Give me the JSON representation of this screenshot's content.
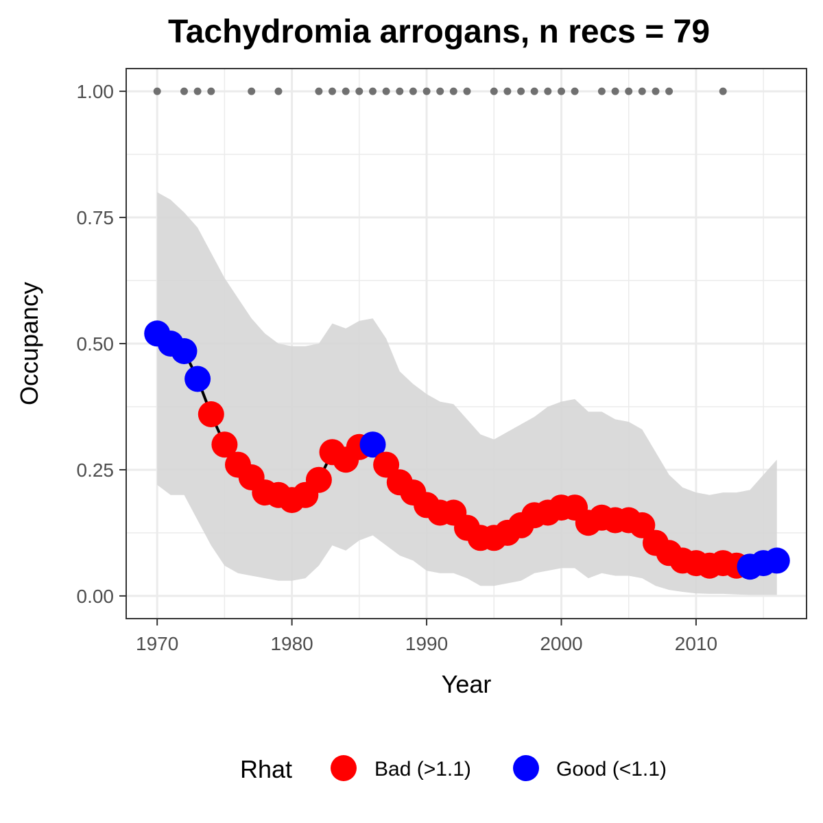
{
  "chart_data": {
    "type": "line",
    "title": "Tachydromia arrogans, n recs = 79",
    "xlabel": "Year",
    "ylabel": "Occupancy",
    "xlim": [
      1967.7,
      2018.2
    ],
    "ylim": [
      -0.045,
      1.045
    ],
    "xticks": [
      1970,
      1980,
      1990,
      2000,
      2010
    ],
    "xtick_labels": [
      "1970",
      "1980",
      "1990",
      "2000",
      "2010"
    ],
    "yticks": [
      0,
      0.25,
      0.5,
      0.75,
      1.0
    ],
    "ytick_labels": [
      "0.00",
      "0.25",
      "0.50",
      "0.75",
      "1.00"
    ],
    "grid": true,
    "legend": {
      "title": "Rhat",
      "position": "bottom",
      "entries": [
        {
          "key": "bad",
          "label": "Bad (>1.1)",
          "color": "#ff0000"
        },
        {
          "key": "good",
          "label": "Good (<1.1)",
          "color": "#0000ff"
        }
      ]
    },
    "series": [
      {
        "x": [
          1970,
          1971,
          1972,
          1973,
          1974,
          1975,
          1976,
          1977,
          1978,
          1979,
          1980,
          1981,
          1982,
          1983,
          1984,
          1985,
          1986,
          1987,
          1988,
          1989,
          1990,
          1991,
          1992,
          1993,
          1994,
          1995,
          1996,
          1997,
          1998,
          1999,
          2000,
          2001,
          2002,
          2003,
          2004,
          2005,
          2006,
          2007,
          2008,
          2009,
          2010,
          2011,
          2012,
          2013,
          2014,
          2015,
          2016
        ],
        "y": [
          0.52,
          0.5,
          0.485,
          0.43,
          0.36,
          0.3,
          0.26,
          0.235,
          0.205,
          0.2,
          0.19,
          0.2,
          0.23,
          0.285,
          0.27,
          0.295,
          0.3,
          0.26,
          0.225,
          0.205,
          0.18,
          0.165,
          0.165,
          0.135,
          0.115,
          0.115,
          0.125,
          0.14,
          0.16,
          0.165,
          0.175,
          0.175,
          0.145,
          0.155,
          0.15,
          0.15,
          0.14,
          0.105,
          0.085,
          0.07,
          0.065,
          0.06,
          0.065,
          0.06,
          0.058,
          0.065,
          0.07
        ],
        "rhat": [
          "good",
          "good",
          "good",
          "good",
          "bad",
          "bad",
          "bad",
          "bad",
          "bad",
          "bad",
          "bad",
          "bad",
          "bad",
          "bad",
          "bad",
          "bad",
          "good",
          "bad",
          "bad",
          "bad",
          "bad",
          "bad",
          "bad",
          "bad",
          "bad",
          "bad",
          "bad",
          "bad",
          "bad",
          "bad",
          "bad",
          "bad",
          "bad",
          "bad",
          "bad",
          "bad",
          "bad",
          "bad",
          "bad",
          "bad",
          "bad",
          "bad",
          "bad",
          "bad",
          "good",
          "good",
          "good"
        ],
        "lower": [
          0.22,
          0.2,
          0.2,
          0.15,
          0.1,
          0.06,
          0.045,
          0.04,
          0.035,
          0.03,
          0.03,
          0.035,
          0.06,
          0.1,
          0.09,
          0.11,
          0.12,
          0.1,
          0.08,
          0.07,
          0.05,
          0.045,
          0.045,
          0.035,
          0.02,
          0.02,
          0.025,
          0.03,
          0.045,
          0.05,
          0.055,
          0.055,
          0.035,
          0.045,
          0.04,
          0.04,
          0.035,
          0.02,
          0.012,
          0.008,
          0.005,
          0.004,
          0.004,
          0.003,
          0.002,
          0.002,
          0.002
        ],
        "upper": [
          0.8,
          0.785,
          0.76,
          0.73,
          0.68,
          0.63,
          0.59,
          0.55,
          0.52,
          0.5,
          0.495,
          0.495,
          0.5,
          0.54,
          0.53,
          0.545,
          0.55,
          0.51,
          0.445,
          0.42,
          0.4,
          0.385,
          0.38,
          0.35,
          0.32,
          0.31,
          0.325,
          0.34,
          0.355,
          0.375,
          0.385,
          0.39,
          0.365,
          0.365,
          0.35,
          0.345,
          0.33,
          0.285,
          0.24,
          0.215,
          0.205,
          0.2,
          0.205,
          0.205,
          0.21,
          0.24,
          0.27
        ]
      }
    ],
    "records": {
      "y": 1.0,
      "x": [
        1970,
        1972,
        1973,
        1974,
        1977,
        1979,
        1982,
        1983,
        1984,
        1985,
        1986,
        1987,
        1988,
        1989,
        1990,
        1991,
        1992,
        1993,
        1995,
        1996,
        1997,
        1998,
        1999,
        2000,
        2001,
        2003,
        2004,
        2005,
        2006,
        2007,
        2008,
        2012
      ]
    }
  },
  "colors": {
    "ribbon": "#d6d6d6",
    "line": "#000000",
    "records": "#707070",
    "grid": "#ebebeb",
    "panel_border": "#333333"
  }
}
